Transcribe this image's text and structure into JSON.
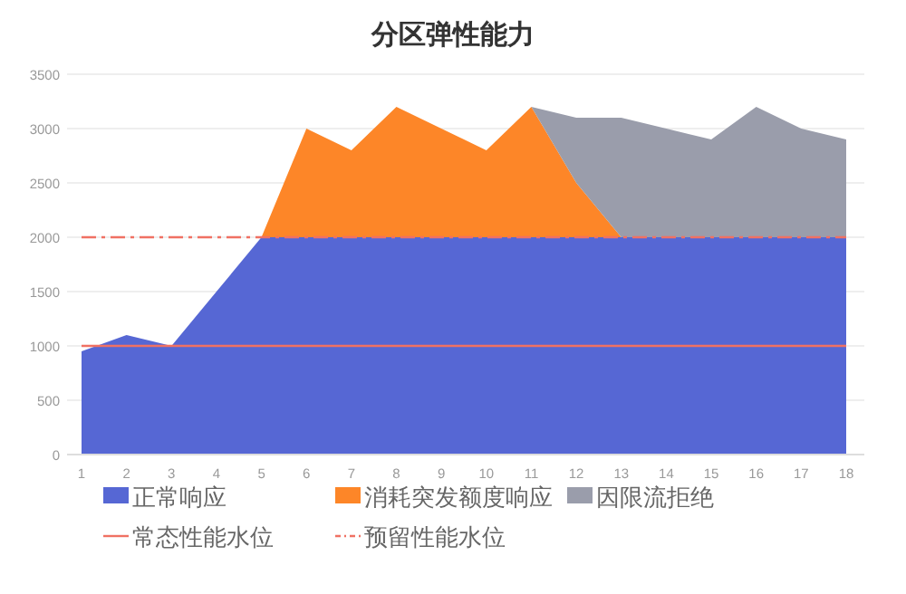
{
  "chart_data": {
    "type": "area",
    "title": "分区弹性能力",
    "stacked": true,
    "x": [
      1,
      2,
      3,
      4,
      5,
      6,
      7,
      8,
      9,
      10,
      11,
      12,
      13,
      14,
      15,
      16,
      17,
      18
    ],
    "xlim": [
      1,
      18
    ],
    "xticks": [
      1,
      2,
      3,
      4,
      5,
      6,
      7,
      8,
      9,
      10,
      11,
      12,
      13,
      14,
      15,
      16,
      17,
      18
    ],
    "series": [
      {
        "name": "正常响应",
        "color": "#5667d4",
        "values": [
          950,
          1100,
          1000,
          1500,
          2000,
          2000,
          2000,
          2000,
          2000,
          2000,
          2000,
          2000,
          2000,
          2000,
          2000,
          2000,
          2000,
          2000
        ]
      },
      {
        "name": "消耗突发额度响应",
        "color": "#fd8628",
        "values": [
          null,
          null,
          null,
          null,
          0,
          1000,
          800,
          1200,
          1000,
          800,
          1200,
          500,
          0,
          0,
          0,
          0,
          0,
          0
        ]
      },
      {
        "name": "因限流拒绝",
        "color": "#9a9dab",
        "values": [
          null,
          null,
          null,
          null,
          null,
          null,
          null,
          null,
          null,
          null,
          0,
          600,
          1100,
          1000,
          900,
          1200,
          1000,
          900
        ]
      }
    ],
    "ref_lines": [
      {
        "axis": "y",
        "value": 1000,
        "label": "常态性能水位",
        "color": "#f07163",
        "line_style": "solid"
      },
      {
        "axis": "y",
        "value": 2000,
        "label": "预留性能水位",
        "color": "#f07163",
        "line_style": "dashed"
      }
    ],
    "ylim": [
      0,
      3500
    ],
    "yticks": [
      0,
      500,
      1000,
      1500,
      2000,
      2500,
      3000,
      3500
    ],
    "grid": "y",
    "legend": "bottom"
  }
}
